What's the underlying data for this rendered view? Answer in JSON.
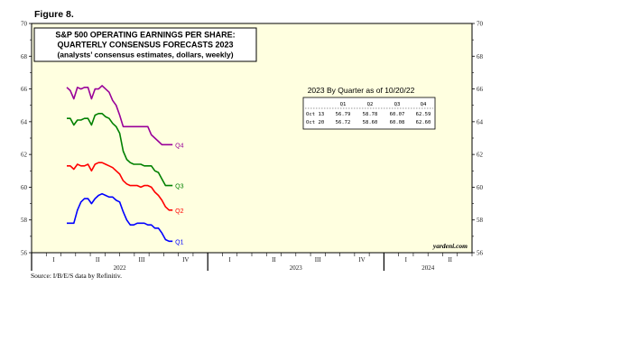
{
  "figure_label": "Figure 8.",
  "source": "Source: I/B/E/S data by Refinitiv.",
  "watermark": "yardeni.com",
  "chart_data": {
    "type": "line",
    "title": "S&P 500 OPERATING EARNINGS PER SHARE:",
    "subtitle": "QUARTERLY CONSENSUS FORECASTS 2023",
    "note": "(analysts’ consensus estimates, dollars, weekly)",
    "ylim": [
      56,
      70
    ],
    "y_ticks": [
      "56",
      "58",
      "60",
      "62",
      "64",
      "66",
      "68",
      "70"
    ],
    "x_quarters": [
      "I",
      "II",
      "III",
      "IV",
      "I",
      "II",
      "III",
      "IV",
      "I",
      "II"
    ],
    "x_years": [
      "2022",
      "2023",
      "2024"
    ],
    "grid": false,
    "colors": {
      "Q1": "#0000ff",
      "Q2": "#ff0000",
      "Q3": "#008000",
      "Q4": "#990099",
      "plot_bg": "#ffffe0"
    },
    "series": [
      {
        "name": "Q4",
        "color": "#990099",
        "x": [
          2022.2,
          2022.22,
          2022.24,
          2022.26,
          2022.28,
          2022.3,
          2022.32,
          2022.34,
          2022.36,
          2022.38,
          2022.4,
          2022.42,
          2022.44,
          2022.46,
          2022.48,
          2022.5,
          2022.52,
          2022.54,
          2022.56,
          2022.58,
          2022.6,
          2022.62,
          2022.64,
          2022.66,
          2022.68,
          2022.7,
          2022.72,
          2022.74,
          2022.76,
          2022.78,
          2022.8
        ],
        "values": [
          66.1,
          65.9,
          65.4,
          66.1,
          66.0,
          66.1,
          66.1,
          65.4,
          66.0,
          66.0,
          66.2,
          66.0,
          65.8,
          65.3,
          65.0,
          64.4,
          63.7,
          63.7,
          63.7,
          63.7,
          63.7,
          63.7,
          63.7,
          63.7,
          63.2,
          63.0,
          62.8,
          62.6,
          62.6,
          62.6,
          62.6
        ]
      },
      {
        "name": "Q3",
        "color": "#008000",
        "x": [
          2022.2,
          2022.22,
          2022.24,
          2022.26,
          2022.28,
          2022.3,
          2022.32,
          2022.34,
          2022.36,
          2022.38,
          2022.4,
          2022.42,
          2022.44,
          2022.46,
          2022.48,
          2022.5,
          2022.52,
          2022.54,
          2022.56,
          2022.58,
          2022.6,
          2022.62,
          2022.64,
          2022.66,
          2022.68,
          2022.7,
          2022.72,
          2022.74,
          2022.76,
          2022.78,
          2022.8
        ],
        "values": [
          64.2,
          64.2,
          63.8,
          64.1,
          64.1,
          64.2,
          64.2,
          63.8,
          64.4,
          64.5,
          64.5,
          64.3,
          64.2,
          63.9,
          63.7,
          63.3,
          62.2,
          61.7,
          61.5,
          61.4,
          61.4,
          61.4,
          61.3,
          61.3,
          61.3,
          61.0,
          60.9,
          60.5,
          60.1,
          60.1,
          60.1
        ]
      },
      {
        "name": "Q2",
        "color": "#ff0000",
        "x": [
          2022.2,
          2022.22,
          2022.24,
          2022.26,
          2022.28,
          2022.3,
          2022.32,
          2022.34,
          2022.36,
          2022.38,
          2022.4,
          2022.42,
          2022.44,
          2022.46,
          2022.48,
          2022.5,
          2022.52,
          2022.54,
          2022.56,
          2022.58,
          2022.6,
          2022.62,
          2022.64,
          2022.66,
          2022.68,
          2022.7,
          2022.72,
          2022.74,
          2022.76,
          2022.78,
          2022.8
        ],
        "values": [
          61.3,
          61.3,
          61.1,
          61.4,
          61.3,
          61.3,
          61.4,
          61.0,
          61.4,
          61.5,
          61.5,
          61.4,
          61.3,
          61.2,
          61.0,
          60.8,
          60.4,
          60.2,
          60.1,
          60.1,
          60.1,
          60.0,
          60.1,
          60.1,
          60.0,
          59.7,
          59.5,
          59.2,
          58.8,
          58.6,
          58.6
        ]
      },
      {
        "name": "Q1",
        "color": "#0000ff",
        "x": [
          2022.2,
          2022.22,
          2022.24,
          2022.26,
          2022.28,
          2022.3,
          2022.32,
          2022.34,
          2022.36,
          2022.38,
          2022.4,
          2022.42,
          2022.44,
          2022.46,
          2022.48,
          2022.5,
          2022.52,
          2022.54,
          2022.56,
          2022.58,
          2022.6,
          2022.62,
          2022.64,
          2022.66,
          2022.68,
          2022.7,
          2022.72,
          2022.74,
          2022.76,
          2022.78,
          2022.8
        ],
        "values": [
          57.8,
          57.8,
          57.8,
          58.6,
          59.1,
          59.3,
          59.3,
          59.0,
          59.3,
          59.5,
          59.6,
          59.5,
          59.4,
          59.4,
          59.2,
          59.1,
          58.5,
          58.0,
          57.7,
          57.7,
          57.8,
          57.8,
          57.8,
          57.7,
          57.7,
          57.5,
          57.5,
          57.2,
          56.8,
          56.7,
          56.7
        ]
      }
    ]
  },
  "table": {
    "title": "2023 By Quarter as of 10/20/22",
    "headers": [
      "",
      "Q1",
      "Q2",
      "Q3",
      "Q4"
    ],
    "rows": [
      [
        "Oct 13",
        "56.79",
        "58.78",
        "60.07",
        "62.59"
      ],
      [
        "Oct 20",
        "56.72",
        "58.60",
        "60.08",
        "62.60"
      ]
    ]
  }
}
